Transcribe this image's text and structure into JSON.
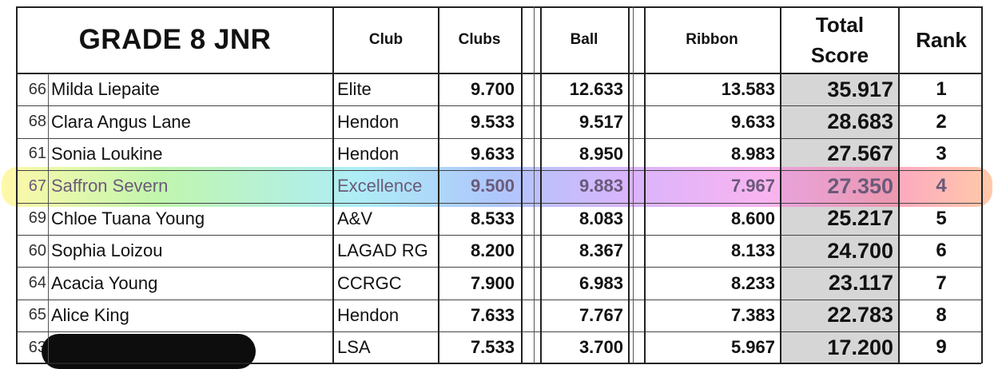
{
  "title": "GRADE 8 JNR",
  "headers": {
    "club": "Club",
    "clubs": "Clubs",
    "ball": "Ball",
    "ribbon": "Ribbon",
    "total": "Total Score",
    "rank": "Rank"
  },
  "rows": [
    {
      "num": "66",
      "name": "Milda Liepaite",
      "club": "Elite",
      "clubs": "9.700",
      "ball": "12.633",
      "ribbon": "13.583",
      "total": "35.917",
      "rank": "1"
    },
    {
      "num": "68",
      "name": "Clara Angus Lane",
      "club": "Hendon",
      "clubs": "9.533",
      "ball": "9.517",
      "ribbon": "9.633",
      "total": "28.683",
      "rank": "2"
    },
    {
      "num": "61",
      "name": "Sonia Loukine",
      "club": "Hendon",
      "clubs": "9.633",
      "ball": "8.950",
      "ribbon": "8.983",
      "total": "27.567",
      "rank": "3"
    },
    {
      "num": "67",
      "name": "Saffron Severn",
      "club": "Excellence",
      "clubs": "9.500",
      "ball": "9.883",
      "ribbon": "7.967",
      "total": "27.350",
      "rank": "4"
    },
    {
      "num": "69",
      "name": "Chloe Tuana Young",
      "club": "A&V",
      "clubs": "8.533",
      "ball": "8.083",
      "ribbon": "8.600",
      "total": "25.217",
      "rank": "5"
    },
    {
      "num": "60",
      "name": "Sophia Loizou",
      "club": "LAGAD RG",
      "clubs": "8.200",
      "ball": "8.367",
      "ribbon": "8.133",
      "total": "24.700",
      "rank": "6"
    },
    {
      "num": "64",
      "name": "Acacia Young",
      "club": "CCRGC",
      "clubs": "7.900",
      "ball": "6.983",
      "ribbon": "8.233",
      "total": "23.117",
      "rank": "7"
    },
    {
      "num": "65",
      "name": "Alice King",
      "club": "Hendon",
      "clubs": "7.633",
      "ball": "7.767",
      "ribbon": "7.383",
      "total": "22.783",
      "rank": "8"
    },
    {
      "num": "63",
      "name": "",
      "club": "LSA",
      "clubs": "7.533",
      "ball": "3.700",
      "ribbon": "5.967",
      "total": "17.200",
      "rank": "9"
    }
  ],
  "highlight_colors": [
    "#fff578",
    "#96f078",
    "#78e1f0",
    "#78a0fa",
    "#be82fa",
    "#f582e6",
    "#fa6e96",
    "#ffa56e"
  ]
}
